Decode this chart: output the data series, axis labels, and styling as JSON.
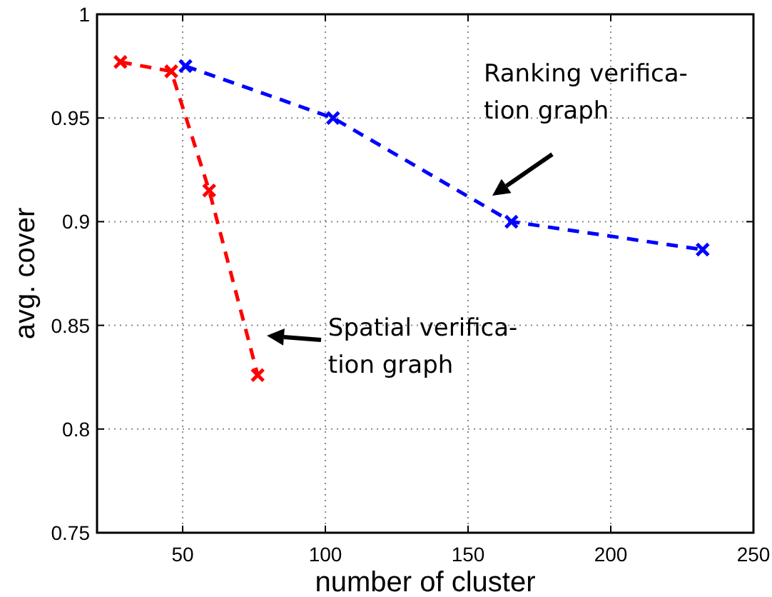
{
  "chart_data": {
    "type": "line",
    "xlabel": "number of cluster",
    "ylabel": "avg. cover",
    "xlim": [
      20,
      250
    ],
    "xticks": [
      50,
      100,
      150,
      200,
      250
    ],
    "ylim": [
      0.75,
      1
    ],
    "yticks": [
      0.75,
      0.8,
      0.85,
      0.9,
      0.95,
      1
    ],
    "grid": true,
    "marker": "cross",
    "line_style": "dashed",
    "series": [
      {
        "color": "#ff0000",
        "x": [
          28.2,
          46,
          59.3,
          76.3
        ],
        "values": [
          0.977,
          0.9725,
          0.915,
          0.826
        ]
      },
      {
        "color": "#0000ff",
        "x": [
          51,
          102.7,
          165.2,
          232.2
        ],
        "values": [
          0.975,
          0.95,
          0.9,
          0.8865
        ]
      }
    ],
    "annotations": [
      "Spatial verifica-\ntion graph",
      "Ranking verifica-\ntion graph"
    ]
  }
}
